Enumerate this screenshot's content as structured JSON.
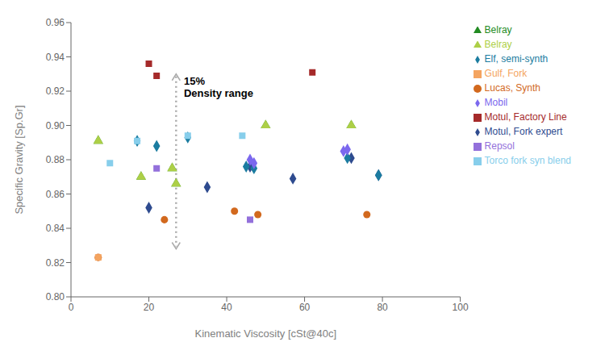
{
  "chart_data": {
    "type": "scatter",
    "xlabel": "Kinematic Viscosity [cSt@40c]",
    "ylabel": "Specific Gravity [Sp.Gr]",
    "xlim": [
      0,
      100
    ],
    "ylim": [
      0.8,
      0.96
    ],
    "xticks": [
      0,
      20,
      40,
      60,
      80,
      100
    ],
    "yticks": [
      {
        "value": 0.8,
        "label": "0.80"
      },
      0.82,
      0.84,
      0.86,
      0.88,
      {
        "value": 0.9,
        "label": "0.90"
      },
      0.92,
      0.94,
      0.96
    ],
    "grid": false,
    "legend": "right",
    "annotations": [
      {
        "text": "15%\nDensity range",
        "x": 29,
        "y": 0.93,
        "arrow": {
          "x": 27,
          "y_top": 0.93,
          "y_bottom": 0.828,
          "color": "#AAAAAA",
          "line_style": "dotted"
        }
      }
    ],
    "series": [
      {
        "name": "Motul, Fork expert",
        "color": "#2E4B8F",
        "marker": "diamond",
        "x": [
          20,
          35,
          46,
          57,
          72,
          79
        ],
        "y": [
          0.852,
          0.864,
          0.876,
          0.869,
          0.881,
          0.871
        ]
      },
      {
        "name": "Motul, Factory Line",
        "color": "#A52A2A",
        "marker": "square",
        "x": [
          20,
          22,
          62
        ],
        "y": [
          0.936,
          0.929,
          0.931
        ]
      },
      {
        "name": "Elf, semi-synth",
        "color": "#1B7CA0",
        "marker": "diamond",
        "x": [
          17,
          22,
          30,
          45,
          47,
          71,
          79
        ],
        "y": [
          0.891,
          0.888,
          0.893,
          0.876,
          0.875,
          0.881,
          0.871
        ]
      },
      {
        "name": "Lucas, Synth",
        "color": "#D2691E",
        "marker": "circle",
        "x": [
          7,
          24,
          42,
          48,
          76
        ],
        "y": [
          0.823,
          0.845,
          0.85,
          0.848,
          0.848
        ]
      },
      {
        "name": "Repsol",
        "color": "#9370DB",
        "marker": "square",
        "x": [
          22,
          46
        ],
        "y": [
          0.875,
          0.845
        ]
      },
      {
        "name": "Mobil",
        "color": "#7B68EE",
        "marker": "diamond",
        "x": [
          46,
          47,
          70,
          71
        ],
        "y": [
          0.88,
          0.878,
          0.885,
          0.886
        ]
      },
      {
        "name": "Gulf, Fork",
        "color": "#F4A460",
        "marker": "square",
        "x": [
          7
        ],
        "y": [
          0.823
        ]
      },
      {
        "name": "Belray",
        "color": "#228B22",
        "marker": "triangle",
        "x": [
          7,
          18,
          26,
          27,
          50,
          72
        ],
        "y": [
          0.891,
          0.87,
          0.875,
          0.866,
          0.9,
          0.9
        ]
      },
      {
        "name": "Belray",
        "color": "#ADCF47",
        "marker": "triangle",
        "x": [
          7,
          18,
          26,
          27,
          50,
          72
        ],
        "y": [
          0.891,
          0.87,
          0.875,
          0.866,
          0.9,
          0.9
        ]
      },
      {
        "name": "Torco fork syn blend",
        "color": "#87CEEB",
        "marker": "square",
        "x": [
          10,
          17,
          30,
          44
        ],
        "y": [
          0.878,
          0.891,
          0.894,
          0.894
        ]
      }
    ]
  }
}
